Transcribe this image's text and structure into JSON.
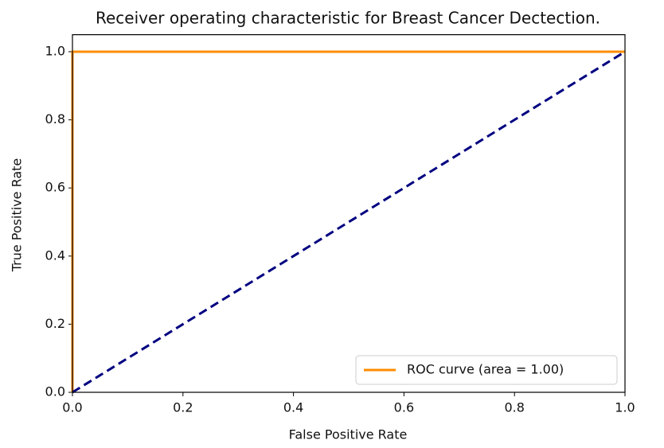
{
  "chart_data": {
    "type": "line",
    "title": "Receiver operating characteristic for Breast Cancer Dectection.",
    "xlabel": "False Positive Rate",
    "ylabel": "True Positive Rate",
    "series": [
      {
        "name": "ROC curve (area = 1.00)",
        "color": "#ff8c00",
        "linestyle": "solid",
        "x": [
          0,
          0,
          1
        ],
        "values": [
          0,
          1,
          1
        ]
      },
      {
        "color": "#000080",
        "linestyle": "dashed",
        "x": [
          0,
          1
        ],
        "values": [
          0,
          1
        ]
      }
    ],
    "xlim": [
      0,
      1
    ],
    "ylim": [
      0,
      1.05
    ],
    "xticks": [
      {
        "value": 0,
        "label": "0.0"
      },
      {
        "value": 0.2,
        "label": "0.2"
      },
      {
        "value": 0.4,
        "label": "0.4"
      },
      {
        "value": 0.6,
        "label": "0.6"
      },
      {
        "value": 0.8,
        "label": "0.8"
      },
      {
        "value": 1,
        "label": "1.0"
      }
    ],
    "yticks": [
      {
        "value": 0,
        "label": "0.0"
      },
      {
        "value": 0.2,
        "label": "0.2"
      },
      {
        "value": 0.4,
        "label": "0.4"
      },
      {
        "value": 0.6,
        "label": "0.6"
      },
      {
        "value": 0.8,
        "label": "0.8"
      },
      {
        "value": 1,
        "label": "1.0"
      }
    ],
    "grid": false,
    "legend": "lower right"
  }
}
